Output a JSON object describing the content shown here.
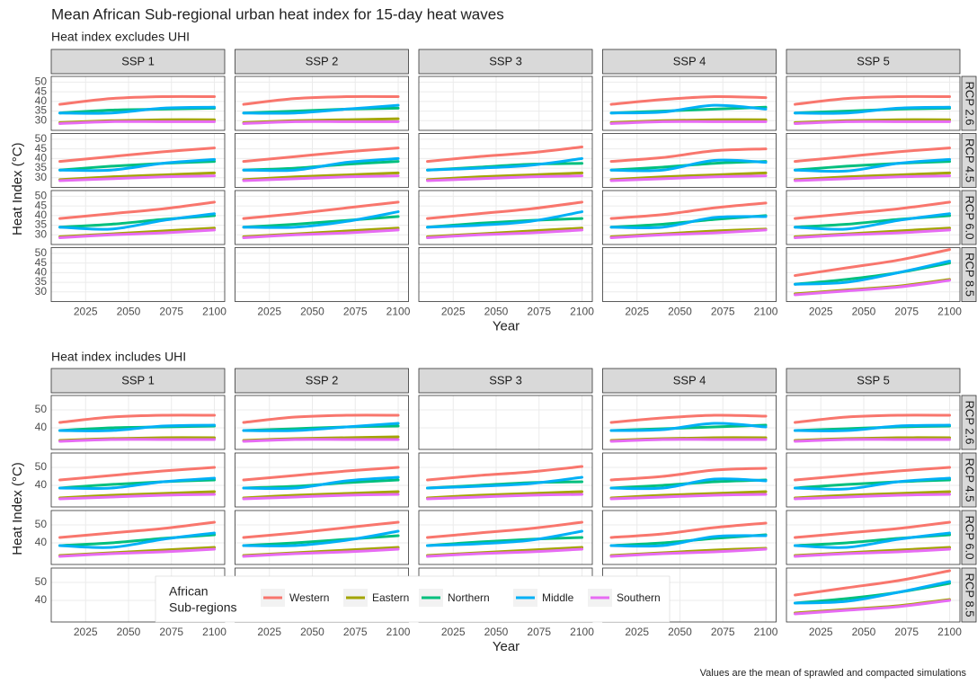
{
  "title": "Mean African Sub-regional urban heat index for 15-day heat waves",
  "caption": "Values are the mean of sprawled and compacted simulations",
  "legend": {
    "title": [
      "African",
      "Sub-regions"
    ],
    "series": [
      {
        "name": "Western",
        "color": "#F8766D"
      },
      {
        "name": "Eastern",
        "color": "#A3A500"
      },
      {
        "name": "Northern",
        "color": "#00BF7D"
      },
      {
        "name": "Middle",
        "color": "#00B0F6"
      },
      {
        "name": "Southern",
        "color": "#E76BF3"
      }
    ]
  },
  "chart_data": [
    {
      "type": "line",
      "subtitle": "Heat index excludes UHI",
      "xlabel": "Year",
      "ylabel": "Heat Index (°C)",
      "cols": [
        "SSP 1",
        "SSP 2",
        "SSP 3",
        "SSP 4",
        "SSP 5"
      ],
      "rows": [
        "RCP 2.6",
        "RCP 4.5",
        "RCP 6.0",
        "RCP 8.5"
      ],
      "x": [
        2010,
        2040,
        2070,
        2100
      ],
      "xlim": [
        2005,
        2106
      ],
      "xticks": [
        2025,
        2050,
        2075,
        2100
      ],
      "ylim": [
        25,
        53
      ],
      "yticks": [
        30,
        35,
        40,
        45,
        50
      ],
      "grid": true,
      "panels": [
        [
          [
            [
              38.5,
              41.5,
              42.5,
              42.5
            ],
            [
              29,
              30,
              30.5,
              30.5
            ],
            [
              34,
              35.5,
              36,
              36.5
            ],
            [
              34,
              34,
              36.5,
              37
            ],
            [
              28.5,
              29.5,
              29.5,
              29.5
            ]
          ],
          [
            [
              38.5,
              41.5,
              42.5,
              42.5
            ],
            [
              29,
              30,
              30.5,
              31
            ],
            [
              34,
              35,
              36,
              36.5
            ],
            [
              34,
              34,
              36,
              38
            ],
            [
              28.5,
              29.5,
              29.5,
              29.5
            ]
          ],
          null,
          [
            [
              38.5,
              41,
              42.5,
              42
            ],
            [
              29,
              30,
              30.5,
              30.5
            ],
            [
              34,
              35,
              36,
              37
            ],
            [
              34,
              34.5,
              38,
              36
            ],
            [
              28.5,
              29.5,
              29.5,
              29.5
            ]
          ],
          [
            [
              38.5,
              41.5,
              42.5,
              42.5
            ],
            [
              29,
              30,
              30.5,
              30.5
            ],
            [
              34,
              35,
              36,
              36.5
            ],
            [
              34,
              34,
              36.5,
              37
            ],
            [
              28.5,
              29.5,
              29.5,
              29.5
            ]
          ]
        ],
        [
          [
            [
              38.5,
              41,
              43.5,
              45.5
            ],
            [
              29,
              30.5,
              31.5,
              32.5
            ],
            [
              34,
              36,
              37.5,
              38.5
            ],
            [
              34,
              34,
              37.5,
              39.5
            ],
            [
              28.5,
              29.5,
              30.5,
              31
            ]
          ],
          [
            [
              38.5,
              41,
              43.5,
              45.5
            ],
            [
              29,
              30.5,
              31.5,
              32.5
            ],
            [
              34,
              35,
              37,
              38.5
            ],
            [
              34,
              34,
              38,
              40
            ],
            [
              28.5,
              29.5,
              30.5,
              31
            ]
          ],
          [
            [
              38.5,
              41,
              43,
              46
            ],
            [
              29,
              30.5,
              31.5,
              32.5
            ],
            [
              34,
              35.5,
              37,
              37.5
            ],
            [
              34,
              35,
              36.5,
              40
            ],
            [
              28.5,
              29.5,
              30.5,
              31
            ]
          ],
          [
            [
              38.5,
              40.5,
              44,
              45
            ],
            [
              29,
              30.5,
              31.5,
              32.5
            ],
            [
              34,
              35.5,
              37.5,
              38.5
            ],
            [
              34,
              34,
              39,
              38
            ],
            [
              28.5,
              29.5,
              30.5,
              31
            ]
          ],
          [
            [
              38.5,
              41,
              43.5,
              45.5
            ],
            [
              29,
              30.5,
              31.5,
              32.5
            ],
            [
              34,
              36,
              37.5,
              38.5
            ],
            [
              34,
              33.5,
              37.5,
              39.5
            ],
            [
              28.5,
              29.5,
              30.5,
              31
            ]
          ]
        ],
        [
          [
            [
              38.5,
              41,
              43.5,
              47
            ],
            [
              29,
              30.5,
              32,
              33.5
            ],
            [
              34,
              35.5,
              38,
              40
            ],
            [
              34,
              33,
              37.5,
              41
            ],
            [
              28.5,
              30,
              31,
              32.5
            ]
          ],
          [
            [
              38.5,
              41,
              44,
              47
            ],
            [
              29,
              30.5,
              32,
              33.5
            ],
            [
              34,
              35.5,
              37.5,
              39.5
            ],
            [
              34,
              34,
              37,
              42
            ],
            [
              28.5,
              30,
              31,
              32.5
            ]
          ],
          [
            [
              38.5,
              41,
              43.5,
              47
            ],
            [
              29,
              30.5,
              32,
              33.5
            ],
            [
              34,
              36,
              37.5,
              38.5
            ],
            [
              34,
              35,
              37,
              42
            ],
            [
              28.5,
              30,
              31,
              32.5
            ]
          ],
          [
            [
              38.5,
              40.5,
              44,
              46.5
            ],
            [
              29,
              30.5,
              32,
              33
            ],
            [
              34,
              35.5,
              38,
              40
            ],
            [
              34,
              34,
              39,
              39.5
            ],
            [
              28.5,
              30,
              31,
              32.5
            ]
          ],
          [
            [
              38.5,
              41,
              43.5,
              47
            ],
            [
              29,
              30.5,
              32,
              33.5
            ],
            [
              34,
              35.5,
              38,
              40
            ],
            [
              34,
              33,
              37.5,
              41
            ],
            [
              28.5,
              30,
              31,
              32.5
            ]
          ]
        ],
        [
          null,
          null,
          null,
          null,
          [
            [
              38.5,
              42.5,
              46.5,
              52
            ],
            [
              29,
              31,
              33,
              36.5
            ],
            [
              34,
              36.5,
              40,
              45
            ],
            [
              34,
              35,
              40,
              46
            ],
            [
              28.5,
              30.5,
              32.5,
              36
            ]
          ]
        ]
      ]
    },
    {
      "type": "line",
      "subtitle": "Heat index includes UHI",
      "xlabel": "Year",
      "ylabel": "Heat Index (°C)",
      "cols": [
        "SSP 1",
        "SSP 2",
        "SSP 3",
        "SSP 4",
        "SSP 5"
      ],
      "rows": [
        "RCP 2.6",
        "RCP 4.5",
        "RCP 6.0",
        "RCP 8.5"
      ],
      "x": [
        2010,
        2040,
        2070,
        2100
      ],
      "xlim": [
        2005,
        2106
      ],
      "xticks": [
        2025,
        2050,
        2075,
        2100
      ],
      "ylim": [
        28,
        58
      ],
      "yticks": [
        40,
        50
      ],
      "grid": true,
      "panels": [
        [
          [
            [
              43,
              46,
              47,
              47
            ],
            [
              33,
              34,
              34.5,
              34.5
            ],
            [
              38.5,
              40,
              40.5,
              41
            ],
            [
              38.5,
              38.5,
              41,
              41.5
            ],
            [
              32.5,
              33.5,
              33.5,
              33.5
            ]
          ],
          [
            [
              43,
              46,
              47,
              47
            ],
            [
              33,
              34,
              34.5,
              35
            ],
            [
              38.5,
              39.5,
              40.5,
              41
            ],
            [
              38.5,
              38.5,
              40.5,
              42.5
            ],
            [
              32.5,
              33.5,
              33.5,
              33.5
            ]
          ],
          null,
          [
            [
              43,
              45.5,
              47,
              46.5
            ],
            [
              33,
              34,
              34.5,
              34.5
            ],
            [
              38.5,
              39.5,
              40.5,
              41.5
            ],
            [
              38.5,
              39,
              42.5,
              40.5
            ],
            [
              32.5,
              33.5,
              33.5,
              33.5
            ]
          ],
          [
            [
              43,
              46,
              47,
              47
            ],
            [
              33,
              34,
              34.5,
              34.5
            ],
            [
              38.5,
              39.5,
              40.5,
              41
            ],
            [
              38.5,
              38.5,
              41,
              41.5
            ],
            [
              32.5,
              33.5,
              33.5,
              33.5
            ]
          ]
        ],
        [
          [
            [
              43,
              45.5,
              48,
              50
            ],
            [
              33,
              34.5,
              35.5,
              36.5
            ],
            [
              38.5,
              40.5,
              42,
              43
            ],
            [
              38.5,
              38.5,
              42,
              44
            ],
            [
              32.5,
              33.5,
              34.5,
              35
            ]
          ],
          [
            [
              43,
              45.5,
              48,
              50
            ],
            [
              33,
              34.5,
              35.5,
              36.5
            ],
            [
              38.5,
              39.5,
              41.5,
              43
            ],
            [
              38.5,
              38.5,
              42.5,
              44.5
            ],
            [
              32.5,
              33.5,
              34.5,
              35
            ]
          ],
          [
            [
              43,
              45.5,
              47.5,
              50.5
            ],
            [
              33,
              34.5,
              35.5,
              36.5
            ],
            [
              38.5,
              40,
              41.5,
              42
            ],
            [
              38.5,
              39.5,
              41,
              44.5
            ],
            [
              32.5,
              33.5,
              34.5,
              35
            ]
          ],
          [
            [
              43,
              45,
              48.5,
              49.5
            ],
            [
              33,
              34.5,
              35.5,
              36.5
            ],
            [
              38.5,
              40,
              42,
              43
            ],
            [
              38.5,
              38.5,
              43.5,
              42.5
            ],
            [
              32.5,
              33.5,
              34.5,
              35
            ]
          ],
          [
            [
              43,
              45.5,
              48,
              50
            ],
            [
              33,
              34.5,
              35.5,
              36.5
            ],
            [
              38.5,
              40.5,
              42,
              43
            ],
            [
              38.5,
              38,
              42,
              44
            ],
            [
              32.5,
              33.5,
              34.5,
              35
            ]
          ]
        ],
        [
          [
            [
              43,
              45.5,
              48,
              51.5
            ],
            [
              33,
              34.5,
              36,
              37.5
            ],
            [
              38.5,
              40,
              42.5,
              44.5
            ],
            [
              38.5,
              37.5,
              42,
              45.5
            ],
            [
              32.5,
              34,
              35,
              36.5
            ]
          ],
          [
            [
              43,
              45.5,
              48.5,
              51.5
            ],
            [
              33,
              34.5,
              36,
              37.5
            ],
            [
              38.5,
              40,
              42,
              44
            ],
            [
              38.5,
              38.5,
              41.5,
              46.5
            ],
            [
              32.5,
              34,
              35,
              36.5
            ]
          ],
          [
            [
              43,
              45.5,
              48,
              51.5
            ],
            [
              33,
              34.5,
              36,
              37.5
            ],
            [
              38.5,
              40.5,
              42,
              43
            ],
            [
              38.5,
              39.5,
              41.5,
              46.5
            ],
            [
              32.5,
              34,
              35,
              36.5
            ]
          ],
          [
            [
              43,
              45,
              48.5,
              51
            ],
            [
              33,
              34.5,
              36,
              37
            ],
            [
              38.5,
              40,
              42.5,
              44.5
            ],
            [
              38.5,
              38.5,
              43.5,
              44
            ],
            [
              32.5,
              34,
              35,
              36.5
            ]
          ],
          [
            [
              43,
              45.5,
              48,
              51.5
            ],
            [
              33,
              34.5,
              36,
              37.5
            ],
            [
              38.5,
              40,
              42.5,
              44.5
            ],
            [
              38.5,
              37.5,
              42,
              45.5
            ],
            [
              32.5,
              34,
              35,
              36.5
            ]
          ]
        ],
        [
          null,
          null,
          null,
          null,
          [
            [
              43,
              47,
              51,
              56.5
            ],
            [
              33,
              35,
              37,
              40.5
            ],
            [
              38.5,
              41,
              44.5,
              49.5
            ],
            [
              38.5,
              39.5,
              44.5,
              50.5
            ],
            [
              32.5,
              34.5,
              36.5,
              40
            ]
          ]
        ]
      ]
    }
  ]
}
